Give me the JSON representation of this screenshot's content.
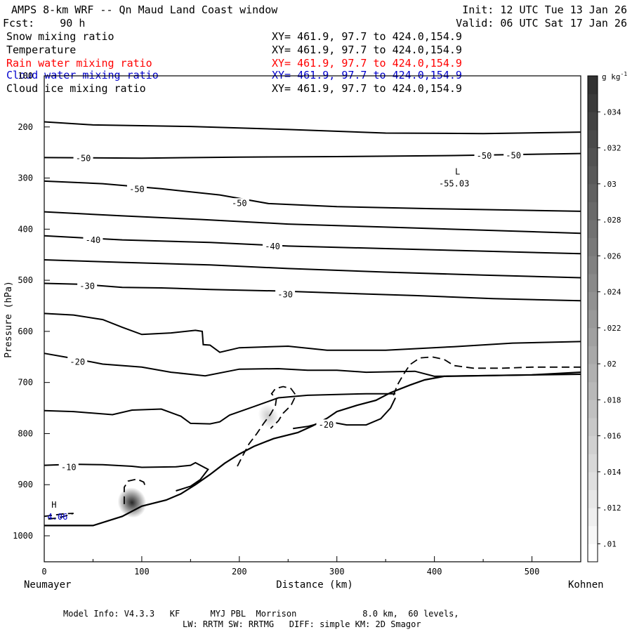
{
  "header": {
    "title": "AMPS 8-km WRF -- Qn Maud Land Coast window",
    "fcst": "Fcst:    90 h",
    "init": "Init: 12 UTC Tue 13 Jan 26",
    "valid": "Valid: 06 UTC Sat 17 Jan 26"
  },
  "fields": [
    {
      "name": "Snow mixing ratio",
      "xy": "XY= 461.9, 97.7 to 424.0,154.9",
      "color": "#000000"
    },
    {
      "name": "Temperature",
      "xy": "XY= 461.9, 97.7 to 424.0,154.9",
      "color": "#000000"
    },
    {
      "name": "Rain water mixing ratio",
      "xy": "XY= 461.9, 97.7 to 424.0,154.9",
      "color": "#ff0000"
    },
    {
      "name": "Cloud water mixing ratio",
      "xy": "XY= 461.9, 97.7 to 424.0,154.9",
      "color": "#0000cc"
    },
    {
      "name": "Cloud ice mixing ratio",
      "xy": "XY= 461.9, 97.7 to 424.0,154.9",
      "color": "#000000"
    }
  ],
  "footer": {
    "model_info": "Model Info: V4.3.3   KF      MYJ PBL  Morrison             8.0 km,  60 levels,",
    "physics": "LW: RRTM SW: RRTMG   DIFF: simple KM: 2D Smagor"
  },
  "chart_data": {
    "type": "cross-section",
    "title": "AMPS 8-km WRF -- Qn Maud Land Coast window",
    "xlabel": "Distance (km)",
    "ylabel": "Pressure (hPa)",
    "xlim": [
      0,
      550
    ],
    "ylim": [
      1050,
      100
    ],
    "x_ticks": [
      0,
      100,
      200,
      300,
      400,
      500
    ],
    "y_ticks": [
      100,
      200,
      300,
      400,
      500,
      600,
      700,
      800,
      900,
      1000
    ],
    "x_endpoints": {
      "left": "Neumayer",
      "right": "Kohnen"
    },
    "colorbar": {
      "unit_label": "g kg",
      "unit_exponent": "-1",
      "ticks": [
        ".01",
        ".012",
        ".014",
        ".016",
        ".018",
        ".02",
        ".022",
        ".024",
        ".026",
        ".028",
        ".03",
        ".032",
        ".034"
      ],
      "range": [
        0.009,
        0.036
      ]
    },
    "terrain": [
      [
        0,
        980
      ],
      [
        50,
        980
      ],
      [
        80,
        962
      ],
      [
        100,
        942
      ],
      [
        125,
        930
      ],
      [
        140,
        918
      ],
      [
        155,
        900
      ],
      [
        170,
        880
      ],
      [
        185,
        858
      ],
      [
        200,
        840
      ],
      [
        215,
        825
      ],
      [
        235,
        810
      ],
      [
        260,
        798
      ],
      [
        275,
        785
      ],
      [
        290,
        770
      ],
      [
        300,
        757
      ],
      [
        320,
        745
      ],
      [
        340,
        735
      ],
      [
        355,
        720
      ],
      [
        375,
        705
      ],
      [
        390,
        695
      ],
      [
        410,
        688
      ],
      [
        500,
        685
      ],
      [
        550,
        680
      ]
    ],
    "isotherms": [
      [
        [
          0,
          190
        ],
        [
          50,
          196
        ],
        [
          150,
          199
        ],
        [
          250,
          205
        ],
        [
          350,
          212
        ],
        [
          450,
          213
        ],
        [
          550,
          210
        ]
      ],
      [
        [
          0,
          260
        ],
        [
          100,
          261
        ],
        [
          200,
          259
        ],
        [
          300,
          258
        ],
        [
          420,
          256
        ],
        [
          550,
          252
        ]
      ],
      [
        [
          0,
          306
        ],
        [
          60,
          311
        ],
        [
          120,
          321
        ],
        [
          180,
          333
        ],
        [
          230,
          350
        ],
        [
          300,
          356
        ],
        [
          400,
          360
        ],
        [
          550,
          365
        ]
      ],
      [
        [
          0,
          366
        ],
        [
          80,
          374
        ],
        [
          160,
          381
        ],
        [
          250,
          390
        ],
        [
          350,
          396
        ],
        [
          450,
          402
        ],
        [
          550,
          408
        ]
      ],
      [
        [
          0,
          413
        ],
        [
          80,
          421
        ],
        [
          170,
          426
        ],
        [
          250,
          433
        ],
        [
          350,
          438
        ],
        [
          450,
          443
        ],
        [
          550,
          448
        ]
      ],
      [
        [
          0,
          460
        ],
        [
          80,
          465
        ],
        [
          170,
          470
        ],
        [
          250,
          477
        ],
        [
          350,
          484
        ],
        [
          450,
          490
        ],
        [
          550,
          495
        ]
      ],
      [
        [
          0,
          506
        ],
        [
          40,
          508
        ],
        [
          80,
          514
        ],
        [
          120,
          515
        ],
        [
          170,
          518
        ],
        [
          240,
          521
        ],
        [
          300,
          525
        ],
        [
          380,
          530
        ],
        [
          460,
          536
        ],
        [
          550,
          540
        ]
      ],
      [
        [
          0,
          565
        ],
        [
          30,
          568
        ],
        [
          60,
          577
        ],
        [
          80,
          592
        ],
        [
          100,
          606
        ],
        [
          130,
          603
        ],
        [
          155,
          598
        ],
        [
          162,
          600
        ],
        [
          163,
          626
        ],
        [
          170,
          627
        ],
        [
          180,
          641
        ],
        [
          200,
          632
        ],
        [
          250,
          629
        ],
        [
          290,
          637
        ],
        [
          350,
          637
        ],
        [
          420,
          630
        ],
        [
          480,
          623
        ],
        [
          550,
          620
        ]
      ],
      [
        [
          0,
          643
        ],
        [
          30,
          653
        ],
        [
          60,
          664
        ],
        [
          100,
          670
        ],
        [
          130,
          680
        ],
        [
          165,
          687
        ],
        [
          200,
          674
        ],
        [
          240,
          673
        ],
        [
          270,
          676
        ],
        [
          300,
          676
        ],
        [
          330,
          680
        ],
        [
          380,
          678
        ],
        [
          400,
          688
        ],
        [
          550,
          684
        ]
      ],
      [
        [
          0,
          755
        ],
        [
          30,
          757
        ],
        [
          70,
          763
        ],
        [
          90,
          754
        ],
        [
          120,
          752
        ],
        [
          140,
          766
        ],
        [
          150,
          780
        ],
        [
          170,
          781
        ],
        [
          180,
          777
        ],
        [
          190,
          764
        ],
        [
          215,
          747
        ],
        [
          240,
          730
        ],
        [
          270,
          725
        ],
        [
          330,
          722
        ],
        [
          360,
          722
        ]
      ],
      [
        [
          255,
          790
        ],
        [
          270,
          786
        ],
        [
          290,
          776
        ],
        [
          310,
          783
        ],
        [
          330,
          783
        ],
        [
          345,
          771
        ],
        [
          355,
          750
        ],
        [
          360,
          730
        ]
      ],
      [
        [
          0,
          862
        ],
        [
          30,
          860
        ],
        [
          60,
          861
        ],
        [
          80,
          863
        ],
        [
          90,
          864
        ],
        [
          100,
          866
        ],
        [
          135,
          865
        ],
        [
          150,
          862
        ],
        [
          155,
          857
        ],
        [
          158,
          860
        ],
        [
          165,
          867
        ],
        [
          168,
          870
        ],
        [
          160,
          890
        ],
        [
          150,
          903
        ],
        [
          135,
          912
        ]
      ]
    ],
    "isotherm_labels": [
      {
        "x": 40,
        "p": 261,
        "text": "-50"
      },
      {
        "x": 95,
        "p": 321,
        "text": "-50"
      },
      {
        "x": 200,
        "p": 349,
        "text": "-50"
      },
      {
        "x": 451,
        "p": 256,
        "text": "-50"
      },
      {
        "x": 481,
        "p": 255,
        "text": "-50"
      },
      {
        "x": 50,
        "p": 421,
        "text": "-40"
      },
      {
        "x": 234,
        "p": 433,
        "text": "-40"
      },
      {
        "x": 44,
        "p": 511,
        "text": "-30"
      },
      {
        "x": 247,
        "p": 527,
        "text": "-30"
      },
      {
        "x": 34,
        "p": 659,
        "text": "-20"
      },
      {
        "x": 289,
        "p": 782,
        "text": "-20"
      },
      {
        "x": 25,
        "p": 865,
        "text": "-10"
      }
    ],
    "dashed_contours": [
      [
        [
          198,
          864
        ],
        [
          203,
          845
        ],
        [
          210,
          820
        ],
        [
          218,
          800
        ],
        [
          225,
          780
        ],
        [
          232,
          762
        ],
        [
          237,
          745
        ],
        [
          238,
          732
        ],
        [
          233,
          722
        ],
        [
          237,
          712
        ],
        [
          245,
          708
        ],
        [
          253,
          712
        ],
        [
          258,
          725
        ],
        [
          253,
          745
        ],
        [
          245,
          760
        ],
        [
          240,
          775
        ],
        [
          232,
          790
        ]
      ],
      [
        [
          358,
          725
        ],
        [
          362,
          705
        ],
        [
          368,
          685
        ],
        [
          375,
          665
        ],
        [
          385,
          652
        ],
        [
          398,
          650
        ],
        [
          410,
          655
        ],
        [
          420,
          667
        ],
        [
          440,
          672
        ],
        [
          470,
          672
        ],
        [
          500,
          670
        ],
        [
          530,
          670
        ],
        [
          550,
          670
        ]
      ],
      [
        [
          82,
          938
        ],
        [
          82,
          905
        ],
        [
          86,
          893
        ],
        [
          95,
          889
        ],
        [
          102,
          895
        ],
        [
          104,
          905
        ]
      ],
      [
        [
          0,
          962
        ],
        [
          20,
          957
        ],
        [
          30,
          956
        ],
        [
          15,
          965
        ],
        [
          0,
          968
        ]
      ]
    ],
    "shaded_blobs": [
      {
        "x": 230,
        "p": 766,
        "value": 0.016
      },
      {
        "x": 90,
        "p": 935,
        "value": 0.032
      }
    ],
    "extrema": [
      {
        "kind": "L",
        "value": "-55.03",
        "x": 418,
        "p": 307
      },
      {
        "kind": "H",
        "value": "4.06",
        "x": 10,
        "p": 959
      }
    ]
  }
}
